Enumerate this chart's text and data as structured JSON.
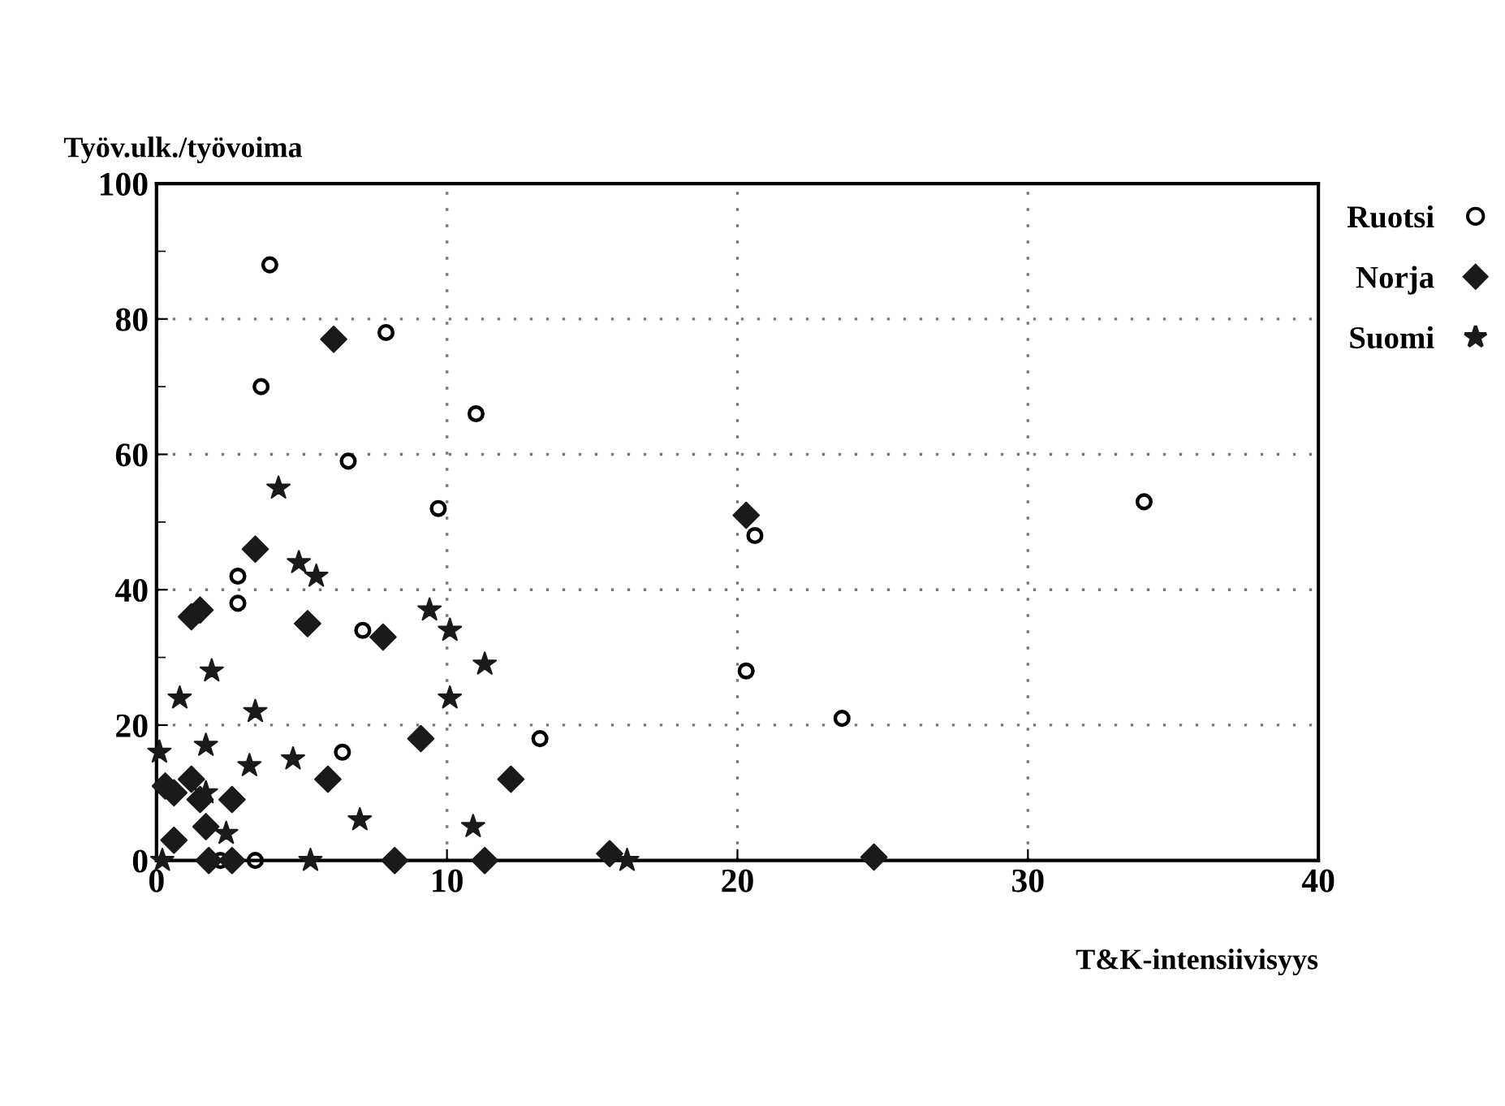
{
  "chart_data": {
    "type": "scatter",
    "xlabel": "T&K-intensiivisyys",
    "ylabel": "Työv.ulk./työvoima",
    "xlim": [
      0,
      40
    ],
    "xticks": [
      0,
      10,
      20,
      30,
      40
    ],
    "ylim": [
      0,
      100
    ],
    "yticks": [
      0,
      {
        "value": 10,
        "label": null
      },
      20,
      {
        "value": 30,
        "label": null
      },
      40,
      {
        "value": 50,
        "label": null
      },
      60,
      {
        "value": 70,
        "label": null
      },
      80,
      {
        "value": 90,
        "label": null
      },
      100
    ],
    "grid": true,
    "legend": "right",
    "series": [
      {
        "name": "Ruotsi",
        "color": "#000000",
        "marker": "circle",
        "x": [
          3.9,
          7.9,
          3.6,
          11.0,
          6.6,
          9.7,
          2.8,
          2.8,
          7.1,
          13.2,
          6.4,
          20.6,
          20.3,
          23.6,
          34.0,
          2.2,
          3.4
        ],
        "values": [
          88,
          78,
          70,
          66,
          59,
          52,
          42,
          38,
          34,
          18,
          16,
          48,
          28,
          21,
          53,
          0,
          0
        ]
      },
      {
        "name": "Norja",
        "color": "#1a1a1a",
        "marker": "diamond",
        "x": [
          6.1,
          3.4,
          1.2,
          1.5,
          5.2,
          7.8,
          9.1,
          5.9,
          12.2,
          0.3,
          0.6,
          1.2,
          1.5,
          2.6,
          1.7,
          0.6,
          1.8,
          2.6,
          8.2,
          11.3,
          15.6,
          24.7,
          20.3
        ],
        "values": [
          77,
          46,
          36,
          37,
          35,
          33,
          18,
          12,
          12,
          11,
          10,
          12,
          9,
          9,
          5,
          3,
          0,
          0,
          0,
          0,
          1,
          0.5,
          51
        ]
      },
      {
        "name": "Suomi",
        "color": "#1a1a1a",
        "marker": "star",
        "x": [
          4.2,
          4.9,
          5.5,
          9.4,
          10.1,
          11.3,
          1.9,
          0.8,
          10.1,
          3.4,
          0.1,
          1.7,
          4.7,
          3.2,
          1.7,
          7.0,
          10.9,
          2.4,
          0.2,
          5.3,
          16.2
        ],
        "values": [
          55,
          44,
          42,
          37,
          34,
          29,
          28,
          24,
          24,
          22,
          16,
          17,
          15,
          14,
          10,
          6,
          5,
          4,
          0,
          0,
          0
        ]
      }
    ]
  }
}
